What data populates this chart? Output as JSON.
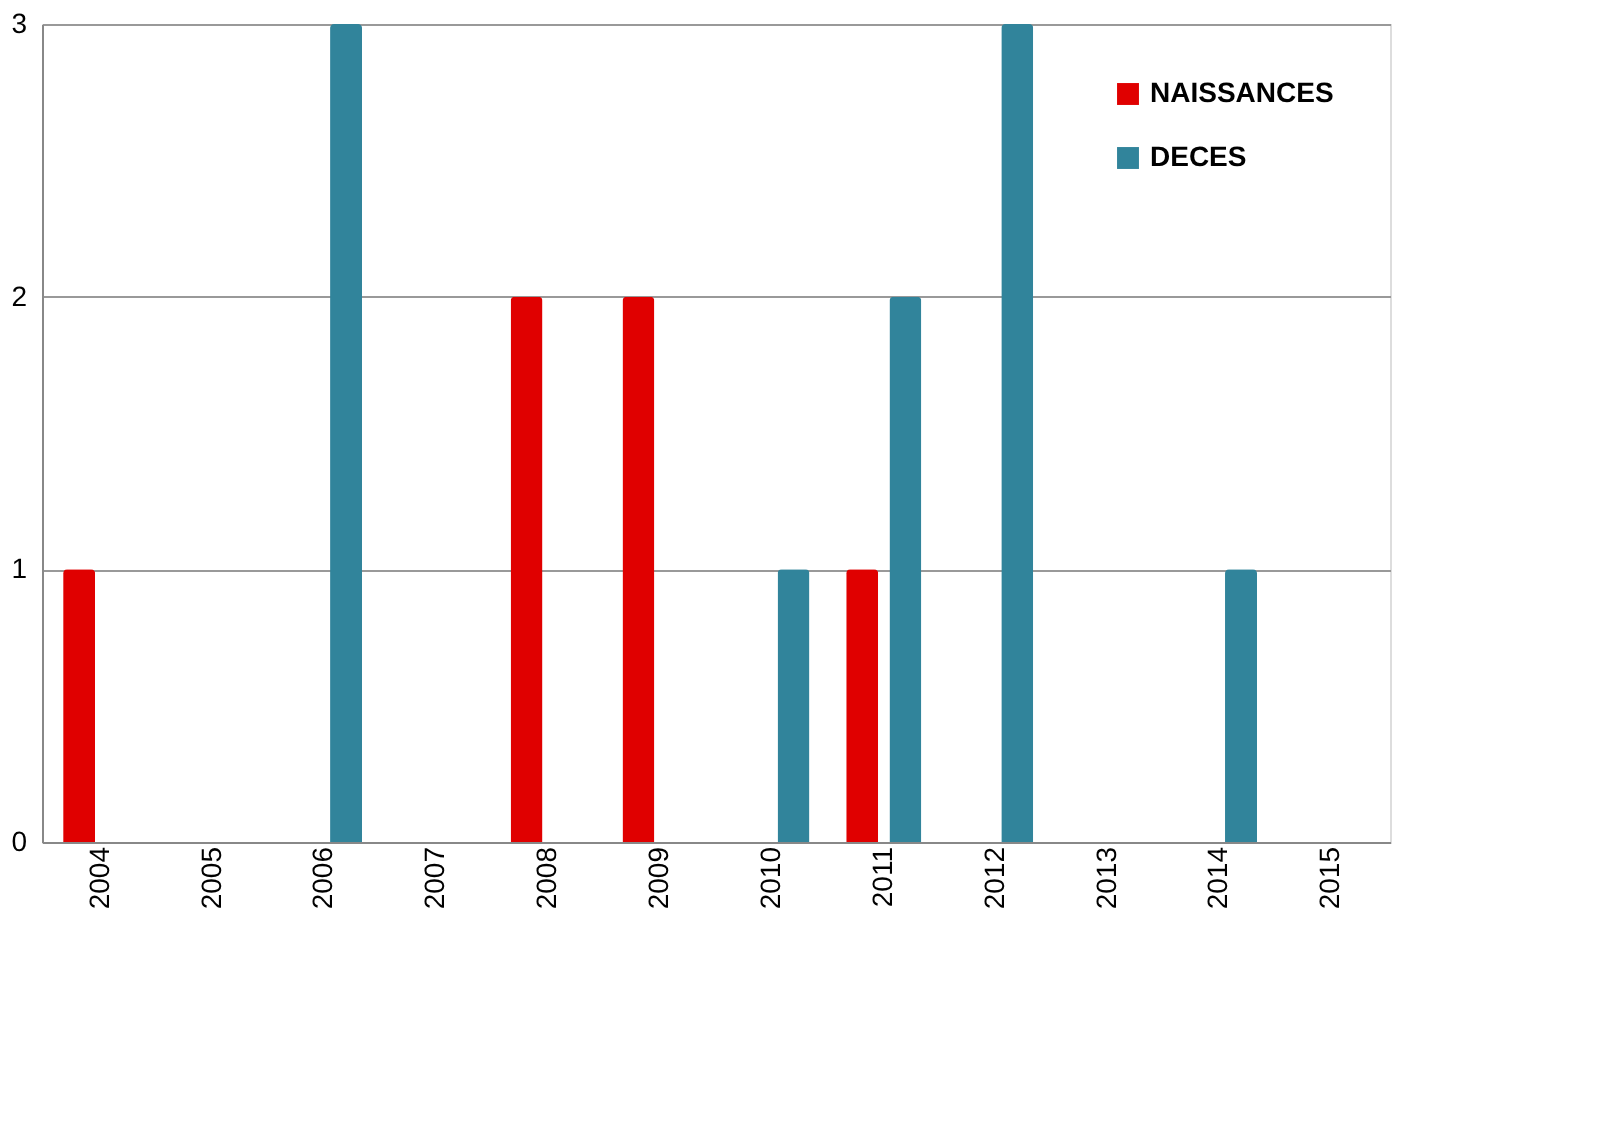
{
  "chart_data": {
    "type": "bar",
    "categories": [
      "2004",
      "2005",
      "2006",
      "2007",
      "2008",
      "2009",
      "2010",
      "2011",
      "2012",
      "2013",
      "2014",
      "2015"
    ],
    "series": [
      {
        "name": "NAISSANCES",
        "color": "#e00000",
        "values": [
          1,
          0,
          0,
          0,
          2,
          2,
          0,
          1,
          0,
          0,
          0,
          0
        ]
      },
      {
        "name": "DECES",
        "color": "#31849b",
        "values": [
          0,
          0,
          3,
          0,
          0,
          0,
          1,
          2,
          3,
          0,
          1,
          0
        ]
      }
    ],
    "ylim": [
      0,
      3
    ],
    "yticks": [
      0,
      1,
      2,
      3
    ],
    "grid": "y",
    "legend": "top right"
  }
}
